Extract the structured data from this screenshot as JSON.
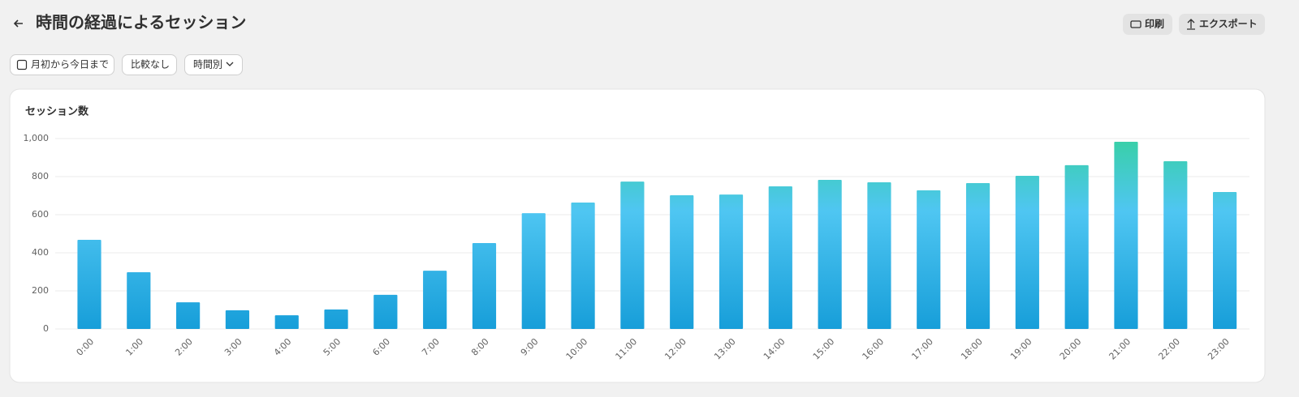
{
  "header": {
    "title": "時間の経過によるセッション",
    "buttons": [
      "印刷",
      "エクスポート"
    ]
  },
  "filters": [
    "月初から今日まで",
    "比較なし",
    "時間別"
  ],
  "card": {
    "title": "セッション数"
  },
  "chart_data": {
    "type": "bar",
    "categories": [
      "0:00",
      "1:00",
      "2:00",
      "3:00",
      "4:00",
      "5:00",
      "6:00",
      "7:00",
      "8:00",
      "9:00",
      "10:00",
      "11:00",
      "12:00",
      "13:00",
      "14:00",
      "15:00",
      "16:00",
      "17:00",
      "18:00",
      "19:00",
      "20:00",
      "21:00",
      "22:00",
      "23:00"
    ],
    "values": [
      468,
      298,
      140,
      98,
      72,
      102,
      179,
      306,
      451,
      608,
      664,
      774,
      702,
      706,
      749,
      783,
      770,
      728,
      766,
      804,
      860,
      983,
      881,
      719
    ],
    "gradient": [
      "#179ed9",
      "#4fc6f2",
      "#38d0a6"
    ],
    "ylim": [
      0,
      1000
    ],
    "yticks": [
      0,
      200,
      400,
      600,
      800,
      {
        "value": 1000,
        "label": "1,000"
      }
    ],
    "grid": true
  }
}
